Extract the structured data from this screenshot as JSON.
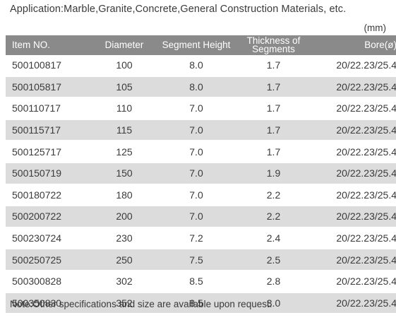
{
  "application_text": "Application:Marble,Granite,Concrete,General Construction Materials, etc.",
  "units_text": "(mm)",
  "table": {
    "headers": {
      "item_no": "Item NO.",
      "diameter": "Diameter",
      "segment_height": "Segment Height",
      "thickness_line1": "Thickness of",
      "thickness_line2": "Segments",
      "bore": "Bore(ø)"
    },
    "rows": [
      [
        "500100817",
        "100",
        "8.0",
        "1.7",
        "20/22.23/25.4"
      ],
      [
        "500105817",
        "105",
        "8.0",
        "1.7",
        "20/22.23/25.4"
      ],
      [
        "500110717",
        "110",
        "7.0",
        "1.7",
        "20/22.23/25.4"
      ],
      [
        "500115717",
        "115",
        "7.0",
        "1.7",
        "20/22.23/25.4"
      ],
      [
        "500125717",
        "125",
        "7.0",
        "1.7",
        "20/22.23/25.4"
      ],
      [
        "500150719",
        "150",
        "7.0",
        "1.9",
        "20/22.23/25.4"
      ],
      [
        "500180722",
        "180",
        "7.0",
        "2.2",
        "20/22.23/25.4"
      ],
      [
        "500200722",
        "200",
        "7.0",
        "2.2",
        "20/22.23/25.4"
      ],
      [
        "500230724",
        "230",
        "7.2",
        "2.4",
        "20/22.23/25.4"
      ],
      [
        "500250725",
        "250",
        "7.5",
        "2.5",
        "20/22.23/25.4"
      ],
      [
        "500300828",
        "302",
        "8.5",
        "2.8",
        "20/22.23/25.4"
      ],
      [
        "500350830",
        "352",
        "8.5",
        "3.0",
        "20/22.23/25.4"
      ]
    ]
  },
  "note_text": "Note:Other specifications and size are available upon request.",
  "colors": {
    "header_bg": "#8a8a8a",
    "stripe_bg": "#dcdcdc",
    "text": "#3a3a3a"
  }
}
